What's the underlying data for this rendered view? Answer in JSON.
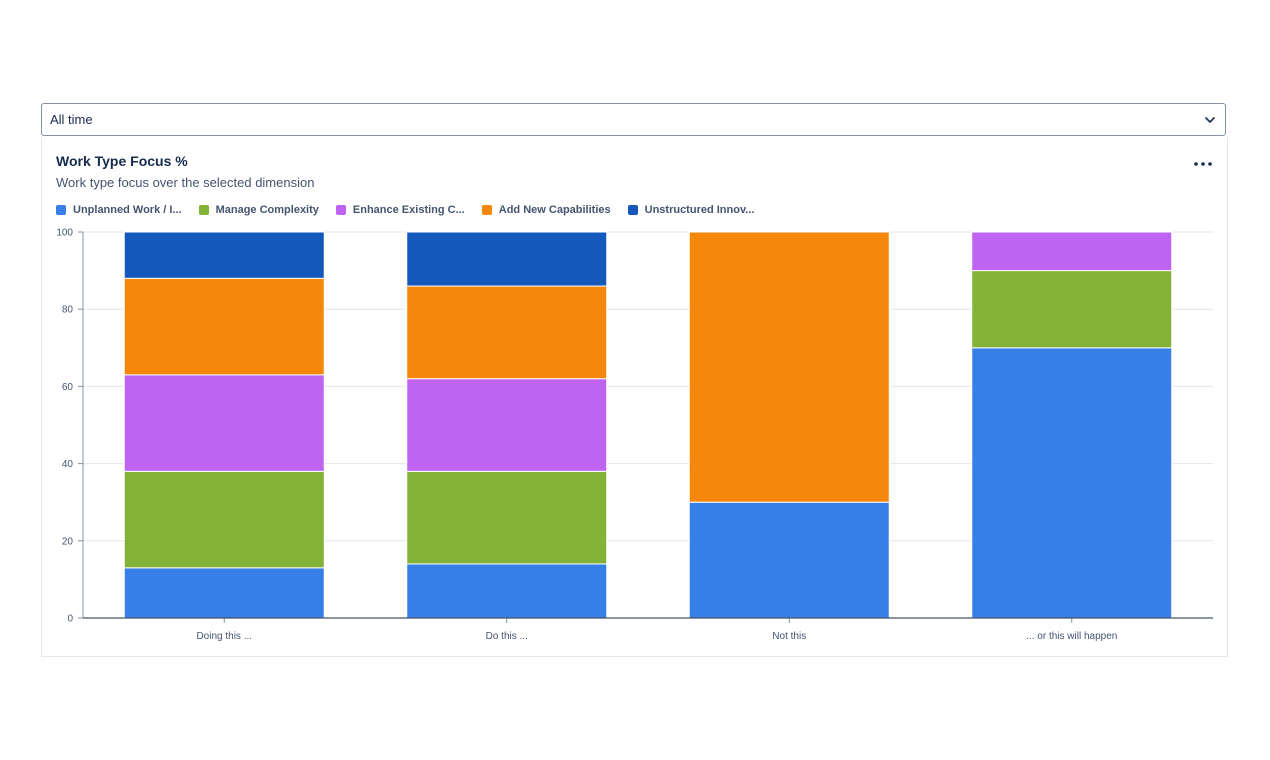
{
  "filter": {
    "selected": "All time",
    "chevron_icon": "chevron-down-icon"
  },
  "card": {
    "title": "Work Type Focus %",
    "subtitle": "Work type focus over the selected dimension",
    "more_icon": "more-horizontal-icon"
  },
  "legend": [
    {
      "label": "Unplanned Work / I...",
      "color": "#367fe6"
    },
    {
      "label": "Manage Complexity",
      "color": "#82b336"
    },
    {
      "label": "Enhance Existing C...",
      "color": "#bf63f3"
    },
    {
      "label": "Add New Capabilities",
      "color": "#f5870a"
    },
    {
      "label": "Unstructured Innov...",
      "color": "#1558bc"
    }
  ],
  "chart_data": {
    "type": "bar",
    "stacked": true,
    "categories": [
      "Doing this ...",
      "Do this ...",
      "Not this",
      "... or this will happen"
    ],
    "series": [
      {
        "name": "Unplanned Work / I...",
        "color": "#367fe6",
        "values": [
          13,
          14,
          30,
          70
        ]
      },
      {
        "name": "Manage Complexity",
        "color": "#82b336",
        "values": [
          25,
          24,
          0,
          20
        ]
      },
      {
        "name": "Enhance Existing C...",
        "color": "#bf63f3",
        "values": [
          25,
          24,
          0,
          10
        ]
      },
      {
        "name": "Add New Capabilities",
        "color": "#f5870a",
        "values": [
          25,
          24,
          70,
          0
        ]
      },
      {
        "name": "Unstructured Innov...",
        "color": "#1558bc",
        "values": [
          12,
          14,
          0,
          0
        ]
      }
    ],
    "ylim": [
      0,
      100
    ],
    "yticks": [
      "0",
      "20",
      "40",
      "60",
      "80",
      "100"
    ],
    "grid": true,
    "legend_position": "top-left",
    "title": "",
    "xlabel": "",
    "ylabel": ""
  }
}
